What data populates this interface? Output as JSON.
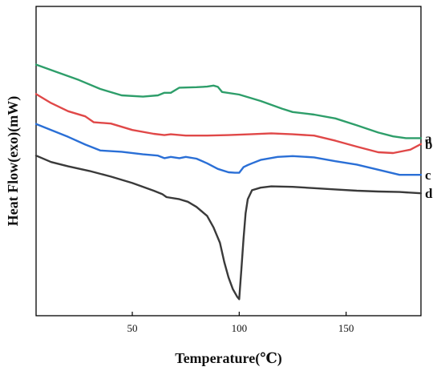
{
  "chart_data": {
    "type": "line",
    "xlabel": "Temperature(℃)",
    "ylabel": "Heat Flow(exo)(mW)",
    "xlim": [
      5,
      185
    ],
    "ylim": [
      0,
      100
    ],
    "x_ticks": [
      50,
      100,
      150
    ],
    "y_ticks_labeled": false,
    "grid": false,
    "series": [
      {
        "name": "a",
        "color": "#2e9e6a",
        "points": [
          [
            5,
            92
          ],
          [
            15,
            89
          ],
          [
            25,
            86
          ],
          [
            35,
            82.5
          ],
          [
            45,
            80
          ],
          [
            55,
            79.5
          ],
          [
            62,
            80
          ],
          [
            65,
            81
          ],
          [
            68,
            81
          ],
          [
            72,
            83
          ],
          [
            80,
            83.2
          ],
          [
            85,
            83.4
          ],
          [
            88,
            83.8
          ],
          [
            90,
            83.3
          ],
          [
            92,
            81.3
          ],
          [
            100,
            80.3
          ],
          [
            110,
            77.8
          ],
          [
            120,
            74.8
          ],
          [
            125,
            73.5
          ],
          [
            135,
            72.5
          ],
          [
            145,
            71
          ],
          [
            155,
            68.3
          ],
          [
            165,
            65.5
          ],
          [
            172,
            64
          ],
          [
            178,
            63.3
          ],
          [
            185,
            63.3
          ]
        ]
      },
      {
        "name": "b",
        "color": "#e04848",
        "points": [
          [
            5,
            80.5
          ],
          [
            12,
            77
          ],
          [
            20,
            73.8
          ],
          [
            28,
            71.8
          ],
          [
            32,
            69.5
          ],
          [
            40,
            69
          ],
          [
            50,
            66.5
          ],
          [
            60,
            65
          ],
          [
            65,
            64.5
          ],
          [
            68,
            64.8
          ],
          [
            75,
            64.3
          ],
          [
            85,
            64.3
          ],
          [
            95,
            64.5
          ],
          [
            105,
            64.8
          ],
          [
            115,
            65.2
          ],
          [
            125,
            64.8
          ],
          [
            135,
            64.3
          ],
          [
            145,
            62.3
          ],
          [
            155,
            60
          ],
          [
            165,
            57.8
          ],
          [
            172,
            57.5
          ],
          [
            180,
            58.8
          ],
          [
            185,
            61
          ]
        ]
      },
      {
        "name": "c",
        "color": "#2a6fd6",
        "points": [
          [
            5,
            68.8
          ],
          [
            12,
            66.5
          ],
          [
            20,
            63.8
          ],
          [
            28,
            60.8
          ],
          [
            35,
            58.5
          ],
          [
            45,
            58
          ],
          [
            55,
            57
          ],
          [
            62,
            56.5
          ],
          [
            65,
            55.5
          ],
          [
            68,
            56
          ],
          [
            72,
            55.5
          ],
          [
            75,
            56
          ],
          [
            80,
            55.3
          ],
          [
            85,
            53.5
          ],
          [
            90,
            51.3
          ],
          [
            95,
            50
          ],
          [
            98,
            49.8
          ],
          [
            100,
            49.8
          ],
          [
            102,
            52
          ],
          [
            104,
            52.8
          ],
          [
            106,
            53.5
          ],
          [
            110,
            54.8
          ],
          [
            118,
            56
          ],
          [
            125,
            56.3
          ],
          [
            135,
            55.8
          ],
          [
            145,
            54.3
          ],
          [
            155,
            53
          ],
          [
            165,
            51
          ],
          [
            175,
            49
          ],
          [
            185,
            49
          ]
        ]
      },
      {
        "name": "d",
        "color": "#3a3a3a",
        "points": [
          [
            5,
            56.5
          ],
          [
            12,
            54
          ],
          [
            20,
            52.3
          ],
          [
            30,
            50.5
          ],
          [
            40,
            48.3
          ],
          [
            50,
            45.8
          ],
          [
            60,
            42.8
          ],
          [
            64,
            41.5
          ],
          [
            66,
            40.3
          ],
          [
            72,
            39.5
          ],
          [
            76,
            38.5
          ],
          [
            80,
            36.5
          ],
          [
            85,
            33
          ],
          [
            88,
            28.5
          ],
          [
            91,
            22.5
          ],
          [
            93,
            15
          ],
          [
            95,
            9
          ],
          [
            97,
            4.5
          ],
          [
            99,
            1.5
          ],
          [
            100,
            0.5
          ],
          [
            101,
            12
          ],
          [
            102,
            24
          ],
          [
            103,
            34
          ],
          [
            104,
            39.5
          ],
          [
            106,
            43
          ],
          [
            110,
            44
          ],
          [
            115,
            44.5
          ],
          [
            125,
            44.3
          ],
          [
            135,
            43.8
          ],
          [
            145,
            43.3
          ],
          [
            155,
            42.8
          ],
          [
            165,
            42.5
          ],
          [
            175,
            42.3
          ],
          [
            185,
            41.8
          ]
        ]
      }
    ]
  }
}
